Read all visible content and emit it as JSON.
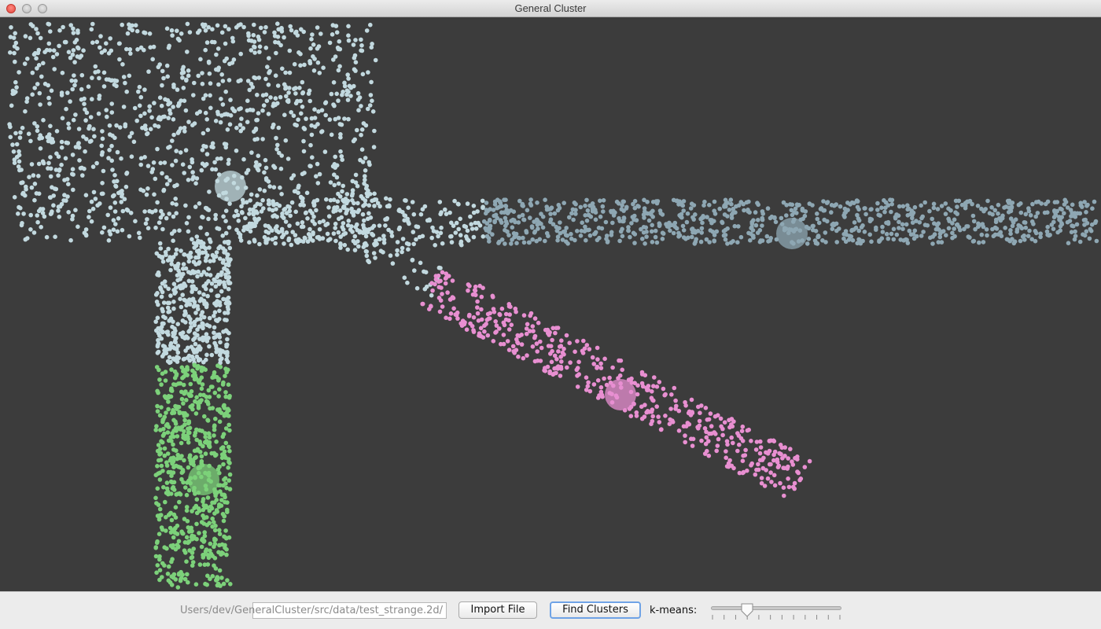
{
  "window": {
    "title": "General Cluster"
  },
  "toolbar": {
    "file_path": "/Users/dev/GeneralCluster/src/data/test_strange.2d",
    "import_label": "Import File",
    "find_label": "Find Clusters",
    "kmeans_label": "k-means:",
    "kmeans_value": 4,
    "kmeans_min": 1,
    "kmeans_max": 12
  },
  "colors": {
    "background": "#3c3c3c",
    "cluster_a": "#c2d9df",
    "cluster_b": "#8ea7b3",
    "cluster_c": "#e88fd1",
    "cluster_d": "#7cd17a"
  },
  "chart_data": {
    "type": "scatter",
    "clusters": [
      {
        "color_key": "cluster_a",
        "centroid": [
          293,
          215
        ],
        "regions": [
          {
            "kind": "rect",
            "x": [
              12,
              478
            ],
            "y": [
              8,
              285
            ],
            "count": 1150
          },
          {
            "kind": "rect",
            "x": [
              198,
              293
            ],
            "y": [
              285,
              440
            ],
            "count": 420
          },
          {
            "kind": "rect",
            "x": [
              300,
              615
            ],
            "y": [
              230,
              290
            ],
            "count": 260
          },
          {
            "kind": "band",
            "from": [
              430,
              270
            ],
            "to": [
              560,
              340
            ],
            "width": 40,
            "count": 55
          }
        ]
      },
      {
        "color_key": "cluster_b",
        "centroid": [
          1007,
          275
        ],
        "regions": [
          {
            "kind": "rect",
            "x": [
              615,
              1395
            ],
            "y": [
              232,
              288
            ],
            "count": 900
          }
        ]
      },
      {
        "color_key": "cluster_c",
        "centroid": [
          789,
          480
        ],
        "regions": [
          {
            "kind": "band",
            "from": [
              545,
              340
            ],
            "to": [
              1022,
              590
            ],
            "width": 58,
            "count": 480
          }
        ]
      },
      {
        "color_key": "cluster_d",
        "centroid": [
          259,
          588
        ],
        "regions": [
          {
            "kind": "rect",
            "x": [
              198,
              293
            ],
            "y": [
              440,
              725
            ],
            "count": 620
          }
        ]
      }
    ]
  }
}
